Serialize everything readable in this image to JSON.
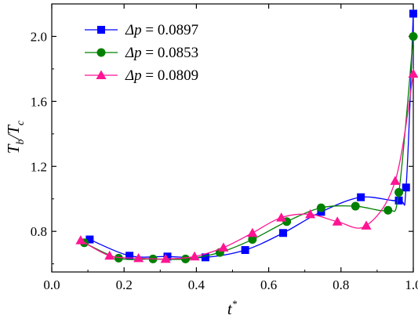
{
  "chart_data": {
    "type": "line",
    "xlabel": "t*",
    "ylabel": "Tb/Tc",
    "xlim": [
      0.0,
      1.0
    ],
    "ylim": [
      0.55,
      2.2
    ],
    "x_ticks": [
      "0.0",
      "0.2",
      "0.4",
      "0.6",
      "0.8",
      "1.0"
    ],
    "y_ticks": [
      "0.8",
      "1.2",
      "1.6",
      "2.0"
    ],
    "legend_position": "top-left",
    "series": [
      {
        "name": "0.0897",
        "color": "#0000ff",
        "marker": "square",
        "x": [
          0.105,
          0.215,
          0.32,
          0.425,
          0.535,
          0.64,
          0.745,
          0.855,
          0.96,
          0.98,
          1.0
        ],
        "y": [
          0.75,
          0.65,
          0.645,
          0.64,
          0.685,
          0.79,
          0.92,
          1.01,
          0.99,
          1.07,
          2.14
        ]
      },
      {
        "name": "0.0853",
        "color": "#008000",
        "marker": "circle",
        "x": [
          0.09,
          0.185,
          0.28,
          0.37,
          0.465,
          0.555,
          0.65,
          0.745,
          0.84,
          0.93,
          0.96,
          1.0
        ],
        "y": [
          0.73,
          0.635,
          0.63,
          0.63,
          0.67,
          0.75,
          0.86,
          0.945,
          0.955,
          0.93,
          1.04,
          2.0
        ]
      },
      {
        "name": "0.0809",
        "color": "#ff1493",
        "marker": "triangle",
        "x": [
          0.08,
          0.16,
          0.24,
          0.315,
          0.395,
          0.475,
          0.555,
          0.635,
          0.715,
          0.79,
          0.87,
          0.95,
          1.0
        ],
        "y": [
          0.745,
          0.65,
          0.635,
          0.63,
          0.645,
          0.7,
          0.79,
          0.885,
          0.905,
          0.86,
          0.835,
          1.11,
          1.77
        ]
      }
    ]
  },
  "legend": {
    "prefix": "Δp =",
    "entries": [
      "0.0897",
      "0.0853",
      "0.0809"
    ]
  }
}
